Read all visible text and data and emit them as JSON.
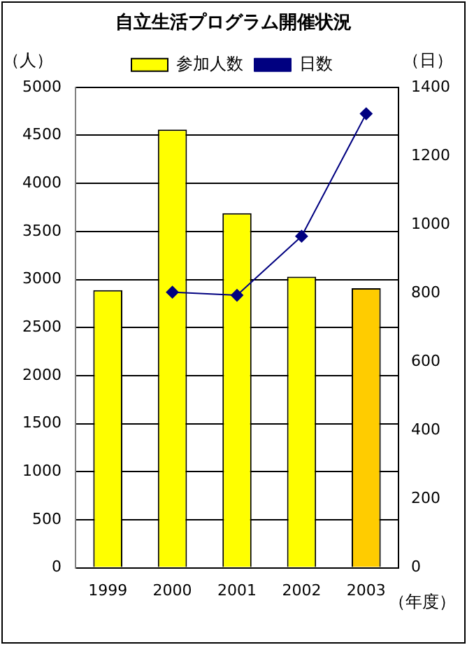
{
  "chart_data": {
    "type": "bar",
    "title": "自立生活プログラム開催状況",
    "ylabel": "（人）",
    "y2label": "（日）",
    "xlabel": "（年度）",
    "categories": [
      "1999",
      "2000",
      "2001",
      "2002",
      "2003"
    ],
    "series": [
      {
        "name": "参加人数",
        "color": "#ffff00",
        "colors": [
          "#ffff00",
          "#ffff00",
          "#ffff00",
          "#ffff00",
          "#ffcc00"
        ],
        "values": [
          2890,
          4560,
          3690,
          3030,
          2910
        ]
      },
      {
        "name": "日数",
        "type": "line",
        "color": "#000080",
        "axis": "y2",
        "values": [
          null,
          803,
          794,
          966,
          1323
        ]
      }
    ],
    "ylim": [
      0,
      5000
    ],
    "yticks": [
      0,
      500,
      1000,
      1500,
      2000,
      2500,
      3000,
      3500,
      4000,
      4500,
      5000
    ],
    "y2lim": [
      0,
      1400
    ],
    "y2ticks": [
      0,
      200,
      400,
      600,
      800,
      1000,
      1200,
      1400
    ],
    "grid": "y",
    "legend": "top",
    "marker": "diamond"
  }
}
